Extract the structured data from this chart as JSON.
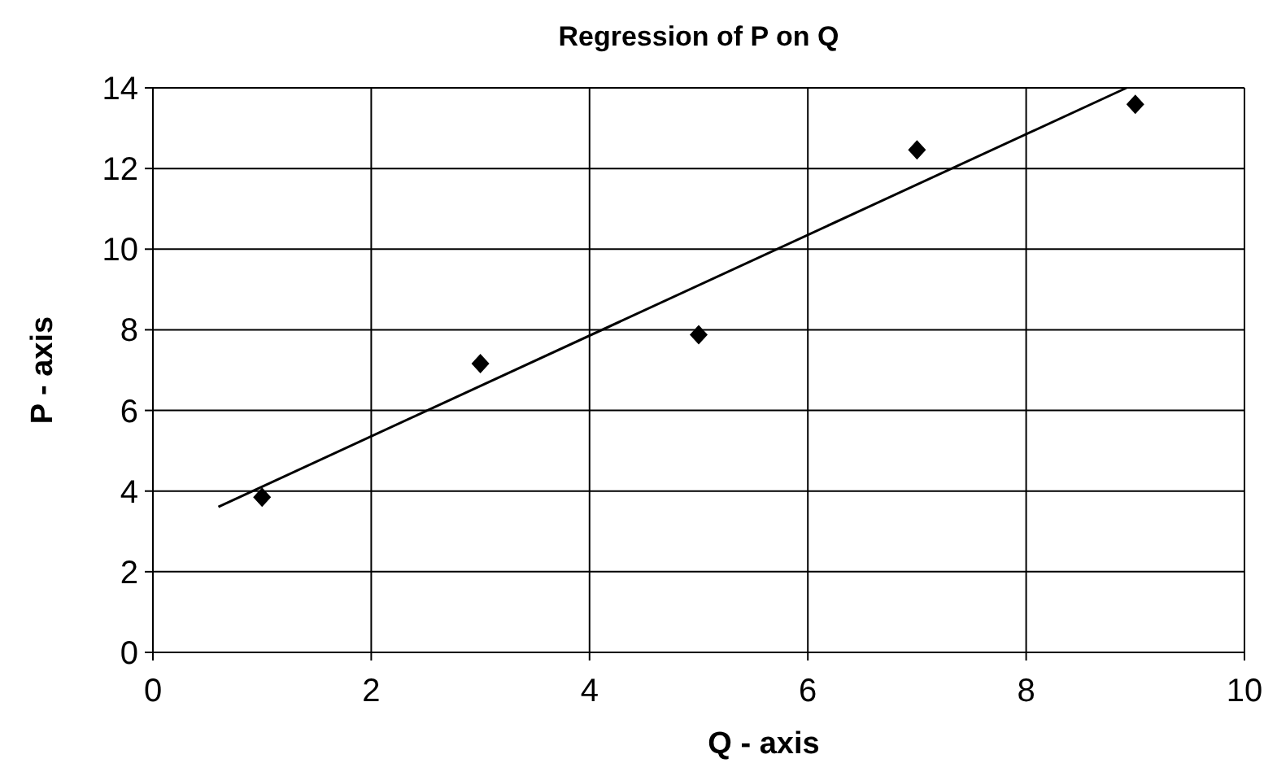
{
  "chart_data": {
    "type": "scatter",
    "title": "Regression of P on Q",
    "xlabel": "Q - axis",
    "ylabel": "P - axis",
    "xlim": [
      0,
      10
    ],
    "xticks": [
      0,
      2,
      4,
      6,
      8,
      10
    ],
    "ylim": [
      0,
      14
    ],
    "yticks": [
      0,
      2,
      4,
      6,
      8,
      10,
      12,
      14
    ],
    "grid": true,
    "marker": "diamond",
    "series": [
      {
        "type": "scatter",
        "color": "#000000",
        "x": [
          1,
          3,
          5,
          7,
          9
        ],
        "values": [
          3.85,
          7.16,
          7.88,
          12.46,
          13.59
        ]
      },
      {
        "type": "line",
        "color": "#000000",
        "marker": "none",
        "line_style": "solid",
        "x": [
          0.6,
          8.92
        ],
        "values": [
          3.61,
          14
        ]
      }
    ]
  }
}
